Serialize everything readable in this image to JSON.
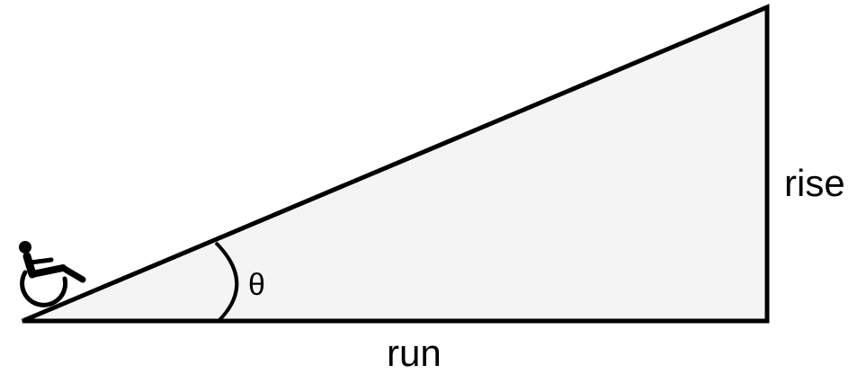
{
  "labels": {
    "rise": "rise",
    "run": "run",
    "angle": "θ"
  },
  "icons": {
    "user": "wheelchair-icon"
  },
  "colors": {
    "ramp_fill": "#f4f4f4",
    "stroke": "#000000",
    "background": "#ffffff"
  }
}
